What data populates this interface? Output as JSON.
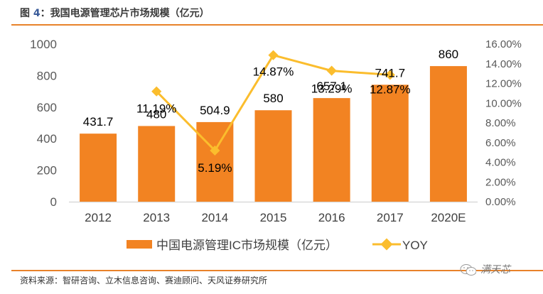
{
  "figure": {
    "title_prefix": "图 ",
    "title_number": "4",
    "title_text": "：我国电源管理芯片市场规模（亿元）",
    "source": "资料来源：智研咨询、立木信息咨询、赛迪顾问、天风证券研究所",
    "watermark": "满天芯"
  },
  "chart_data": {
    "type": "bar",
    "title": "我国电源管理芯片市场规模（亿元）",
    "categories": [
      "2012",
      "2013",
      "2014",
      "2015",
      "2016",
      "2017",
      "2020E"
    ],
    "series": [
      {
        "name": "中国电源管理IC市场规模（亿元）",
        "type": "bar",
        "axis": "left",
        "color": "#f28322",
        "values": [
          431.7,
          480,
          504.9,
          580,
          657.1,
          741.7,
          860
        ],
        "labels": [
          "431.7",
          "480",
          "504.9",
          "580",
          "657.1",
          "741.7",
          "860"
        ]
      },
      {
        "name": "YOY",
        "type": "line",
        "axis": "right",
        "color": "#fbbd2d",
        "marker": "diamond",
        "values": [
          null,
          11.19,
          5.19,
          14.87,
          13.29,
          12.87,
          null
        ],
        "labels": [
          null,
          "11.19%",
          "5.19%",
          "14.87%",
          "13.29%",
          "12.87%",
          null
        ]
      }
    ],
    "left_axis": {
      "min": 0,
      "max": 1000,
      "step": 200,
      "ticks": [
        "0",
        "200",
        "400",
        "600",
        "800",
        "1000"
      ]
    },
    "right_axis": {
      "min": 0,
      "max": 16,
      "step": 2,
      "ticks": [
        "0.00%",
        "2.00%",
        "4.00%",
        "6.00%",
        "8.00%",
        "10.00%",
        "12.00%",
        "14.00%",
        "16.00%"
      ]
    },
    "xlabel": "",
    "ylabel": "",
    "grid": false,
    "legend": {
      "position": "bottom",
      "items": [
        {
          "label": "中国电源管理IC市场规模（亿元）",
          "symbol": "bar"
        },
        {
          "label": "YOY",
          "symbol": "line-diamond"
        }
      ]
    }
  }
}
